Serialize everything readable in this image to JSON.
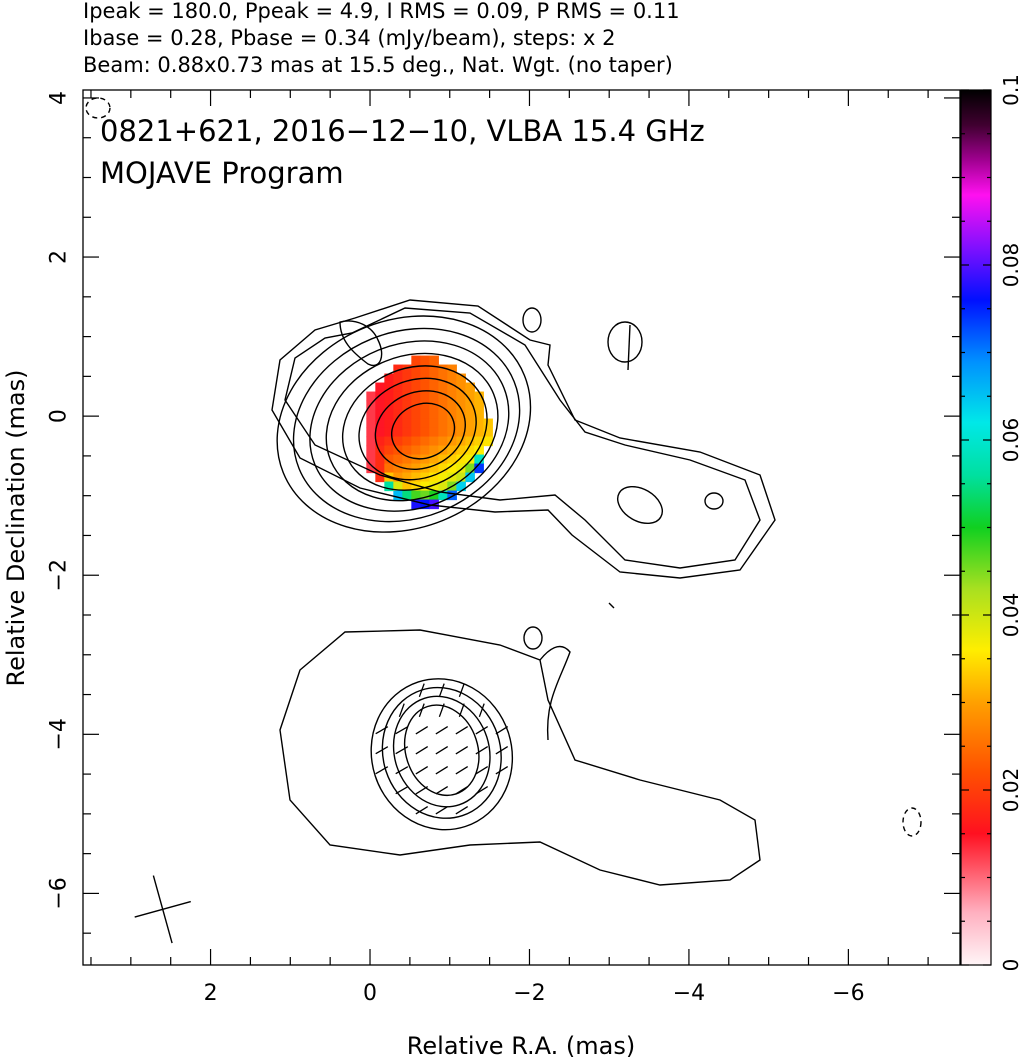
{
  "header": {
    "line1": "Ipeak = 180.0, Ppeak = 4.9, I RMS = 0.09, P RMS = 0.11",
    "line2": "Ibase = 0.28, Pbase = 0.34 (mJy/beam), steps: x 2",
    "line3": "Beam: 0.88x0.73 mas at 15.5 deg., Nat. Wgt. (no taper)"
  },
  "plot_text": {
    "source": "0821+621, 2016−12−10, VLBA 15.4 GHz",
    "program": "MOJAVE Program"
  },
  "chart_data": {
    "type": "heatmap",
    "title": "0821+621, 2016−12−10, VLBA 15.4 GHz",
    "subtitle": "MOJAVE Program",
    "xlabel": "Relative R.A. (mas)",
    "ylabel": "Relative Declination (mas)",
    "xlim": [
      3.6,
      -7.4
    ],
    "ylim": [
      -6.9,
      4.1
    ],
    "x_ticks": [
      2,
      0,
      -2,
      -4,
      -6
    ],
    "x_tick_labels": [
      "2",
      "0",
      "−2",
      "−4",
      "−6"
    ],
    "y_ticks": [
      4,
      2,
      0,
      -2,
      -4,
      -6
    ],
    "y_tick_labels": [
      "4",
      "2",
      "0",
      "−2",
      "−4",
      "−6"
    ],
    "colorbar": {
      "min": 0,
      "max": 0.1,
      "ticks": [
        0,
        0.02,
        0.04,
        0.06,
        0.08,
        0.1
      ],
      "tick_labels": [
        "0",
        "0.02",
        "0.04",
        "0.06",
        "0.08",
        "0.1"
      ]
    },
    "beam": {
      "major_mas": 0.88,
      "minor_mas": 0.73,
      "pa_deg": 15.5,
      "center": [
        2.6,
        -6.2
      ]
    },
    "core": {
      "center": [
        -0.7,
        -0.2
      ],
      "contour_levels": 9,
      "peak_mJy_per_beam": 180.0,
      "base_mJy_per_beam": 0.28
    },
    "fractional_polarization_region": {
      "center": [
        -0.7,
        -0.2
      ],
      "value_range": [
        0.01,
        0.09
      ]
    },
    "southern_component": {
      "center": [
        -0.9,
        -4.2
      ],
      "contour_levels": 4
    },
    "jet_extension": {
      "end": [
        -4.7,
        -0.9
      ]
    }
  }
}
